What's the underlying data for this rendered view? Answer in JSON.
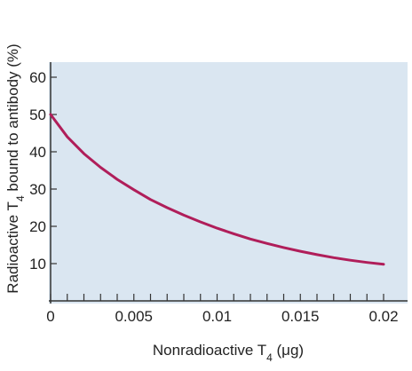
{
  "chart_data": {
    "type": "line",
    "title": "",
    "xlabel": "Nonradioactive T",
    "xlabel_subscript": "4",
    "xlabel_unit": " (μg)",
    "ylabel": "Radioactive T",
    "ylabel_subscript": "4",
    "ylabel_rest": " bound to antibody (%)",
    "xlim": [
      0,
      0.02
    ],
    "ylim": [
      0,
      65
    ],
    "x_ticks": [
      0,
      0.005,
      0.01,
      0.015,
      0.02
    ],
    "x_tick_labels": [
      "0",
      "0.005",
      "0.01",
      "0.015",
      "0.02"
    ],
    "x_minor_step": 0.001,
    "y_ticks": [
      10,
      20,
      30,
      40,
      50,
      60
    ],
    "y_tick_labels": [
      "10",
      "20",
      "30",
      "40",
      "50",
      "60"
    ],
    "grid": false,
    "legend": "none",
    "series": [
      {
        "x": [
          0,
          0.001,
          0.002,
          0.003,
          0.004,
          0.005,
          0.006,
          0.007,
          0.008,
          0.009,
          0.01,
          0.011,
          0.012,
          0.013,
          0.014,
          0.015,
          0.016,
          0.017,
          0.018,
          0.019,
          0.02
        ],
        "y": [
          50.0,
          44.0,
          39.5,
          35.8,
          32.6,
          29.8,
          27.2,
          25.0,
          23.0,
          21.2,
          19.5,
          18.0,
          16.6,
          15.4,
          14.3,
          13.3,
          12.4,
          11.6,
          10.9,
          10.3,
          9.8
        ]
      }
    ],
    "colors": {
      "plot_background": "#dae6f1",
      "line": "#b01e5a",
      "axis": "#333333"
    }
  }
}
